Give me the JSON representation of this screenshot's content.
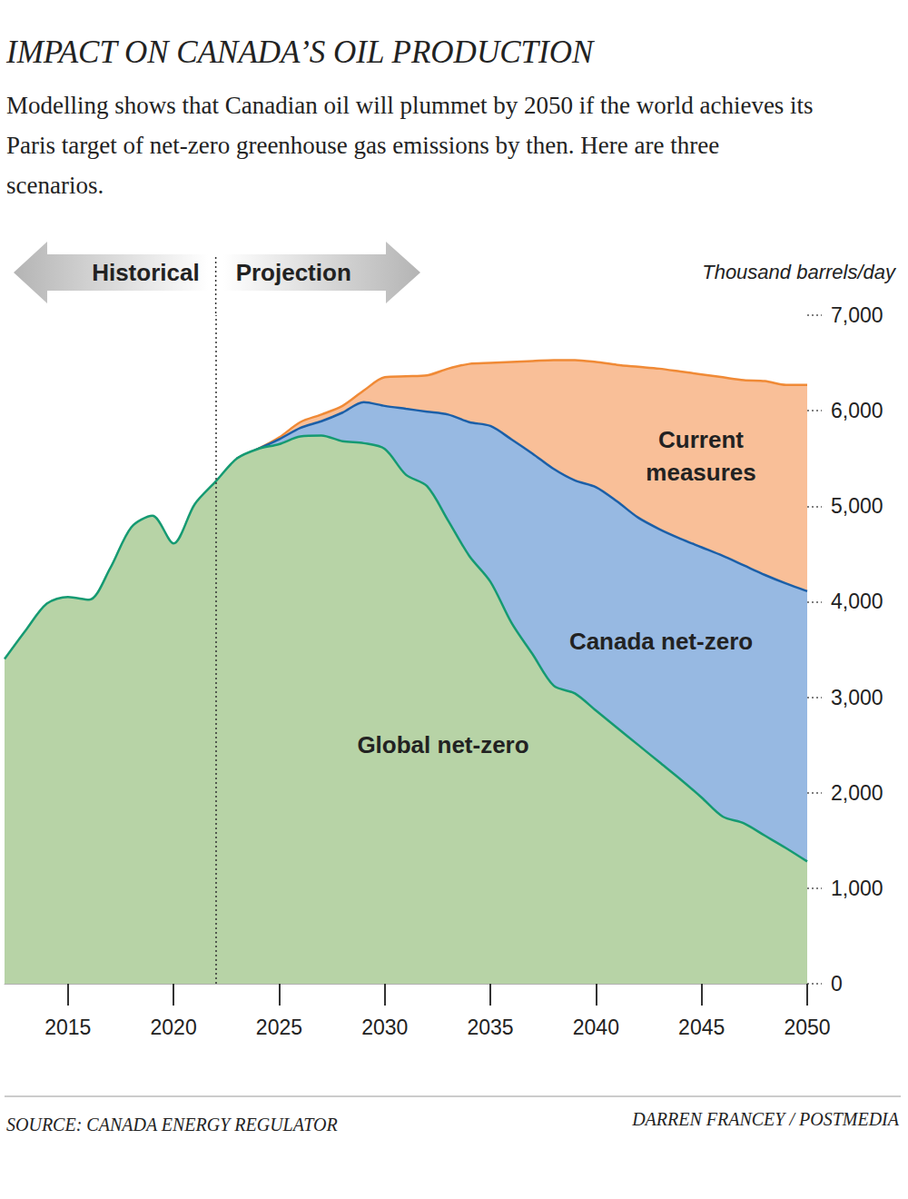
{
  "chart_data": {
    "type": "area",
    "title": "IMPACT ON CANADA’S OIL PRODUCTION",
    "subtitle": "Modelling shows that Canadian oil will plummet by 2050 if the world achieves its Paris target of net-zero greenhouse gas emissions by then. Here are three scenarios.",
    "y_label": "Thousand barrels/day",
    "source": "SOURCE: CANADA ENERGY REGULATOR",
    "credit": "DARREN FRANCEY / POSTMEDIA",
    "annotations": [
      {
        "type": "vline",
        "x": 2022,
        "left_label": "Historical",
        "right_label": "Projection"
      }
    ],
    "x": [
      2012,
      2013,
      2014,
      2015,
      2016,
      2017,
      2018,
      2019,
      2020,
      2021,
      2022,
      2023,
      2024,
      2025,
      2026,
      2027,
      2028,
      2029,
      2030,
      2031,
      2032,
      2033,
      2034,
      2035,
      2036,
      2037,
      2038,
      2039,
      2040,
      2041,
      2042,
      2043,
      2044,
      2045,
      2046,
      2047,
      2048,
      2049,
      2050
    ],
    "series": [
      {
        "name": "Current measures",
        "color": "#f08a36",
        "values": [
          null,
          null,
          null,
          null,
          null,
          null,
          null,
          null,
          null,
          null,
          null,
          5500,
          5600,
          5720,
          5880,
          5960,
          6050,
          6210,
          6350,
          6360,
          6370,
          6440,
          6490,
          6500,
          6510,
          6520,
          6530,
          6530,
          6510,
          6480,
          6460,
          6440,
          6410,
          6380,
          6350,
          6320,
          6310,
          6270,
          6270
        ]
      },
      {
        "name": "Canada net-zero",
        "color": "#1b5fa8",
        "values": [
          null,
          null,
          null,
          null,
          null,
          null,
          null,
          null,
          null,
          null,
          null,
          5500,
          5600,
          5700,
          5820,
          5890,
          5980,
          6090,
          6050,
          6020,
          5990,
          5960,
          5880,
          5840,
          5700,
          5550,
          5390,
          5270,
          5200,
          5050,
          4880,
          4760,
          4660,
          4570,
          4480,
          4380,
          4280,
          4190,
          4110
        ]
      },
      {
        "name": "Global net-zero",
        "color": "#159a72",
        "values": [
          3400,
          3700,
          3980,
          4050,
          4020,
          4350,
          4780,
          4900,
          4610,
          5020,
          5260,
          5500,
          5600,
          5650,
          5730,
          5740,
          5680,
          5660,
          5600,
          5330,
          5210,
          4850,
          4480,
          4210,
          3780,
          3450,
          3120,
          3040,
          2860,
          2680,
          2500,
          2320,
          2140,
          1950,
          1750,
          1680,
          1550,
          1420,
          1280
        ]
      }
    ],
    "xlim": [
      2012,
      2050
    ],
    "xticks": [
      2015,
      2020,
      2025,
      2030,
      2035,
      2040,
      2045,
      2050
    ],
    "ylim": [
      0,
      7000
    ],
    "yticks": [
      0,
      {
        "value": 1000,
        "label": "1,000"
      },
      {
        "value": 2000,
        "label": "2,000"
      },
      {
        "value": 3000,
        "label": "3,000"
      },
      {
        "value": 4000,
        "label": "4,000"
      },
      {
        "value": 5000,
        "label": "5,000"
      },
      {
        "value": 6000,
        "label": "6,000"
      },
      {
        "value": 7000,
        "label": "7,000"
      }
    ],
    "grid": false,
    "stacked": false
  }
}
